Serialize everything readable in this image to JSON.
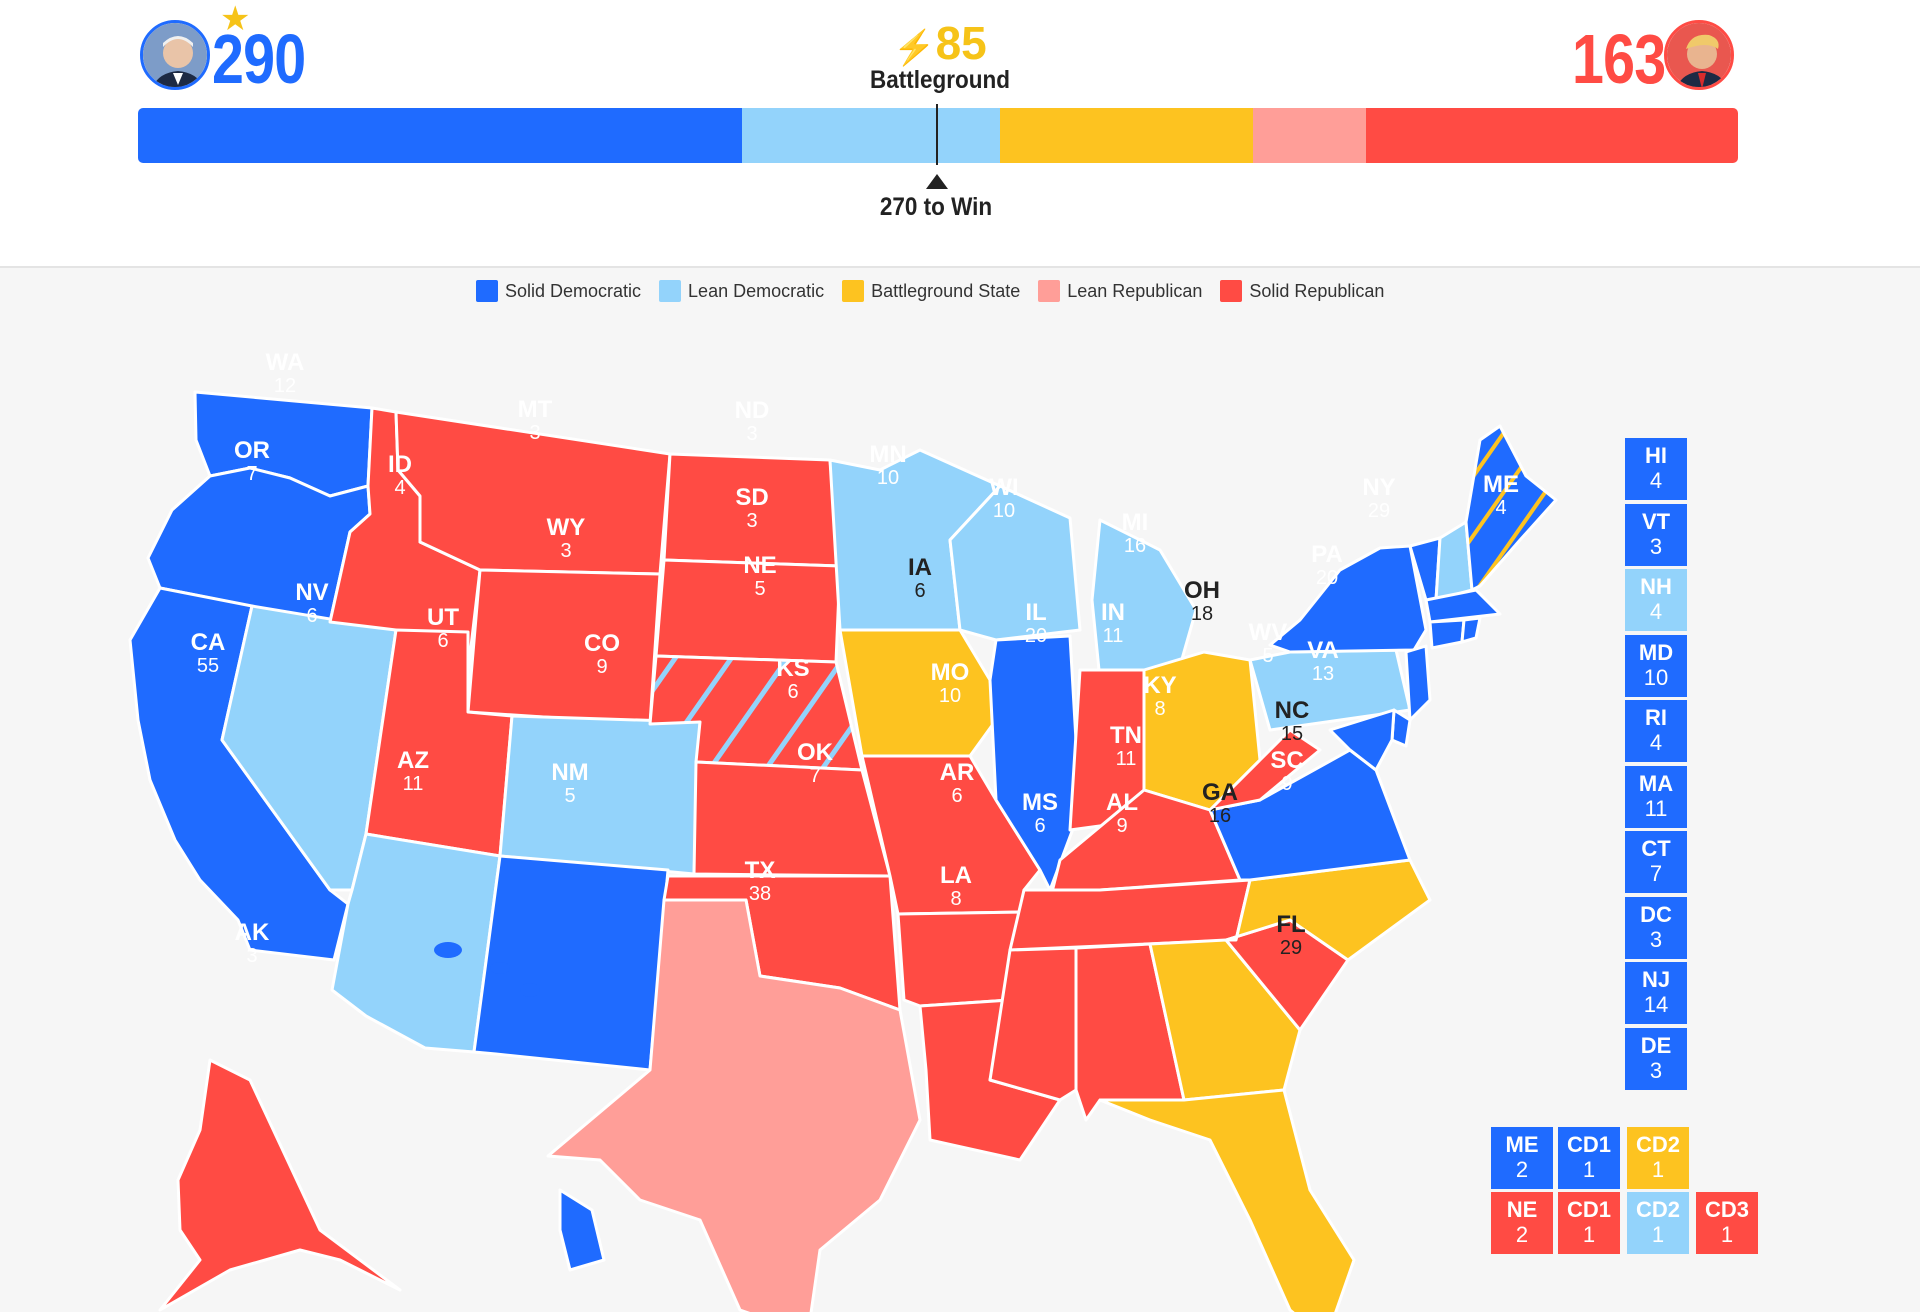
{
  "colors": {
    "solid_dem": "#1f6bff",
    "lean_dem": "#93d3fb",
    "battleground": "#fdc320",
    "lean_rep": "#ff9e98",
    "solid_rep": "#ff4b44"
  },
  "header": {
    "dem_total": "290",
    "rep_total": "163",
    "battleground_total": "85",
    "battleground_label": "Battleground",
    "win_label": "270 to Win",
    "winner_star_icon": "star-icon",
    "dem_avatar_icon": "candidate-portrait-icon",
    "rep_avatar_icon": "candidate-portrait-icon"
  },
  "bar": {
    "total": 538,
    "segments": [
      {
        "category": "solid_dem",
        "value": 203
      },
      {
        "category": "lean_dem",
        "value": 87
      },
      {
        "category": "battleground",
        "value": 85
      },
      {
        "category": "lean_rep",
        "value": 38
      },
      {
        "category": "solid_rep",
        "value": 125
      }
    ],
    "threshold": 270
  },
  "legend": [
    {
      "label": "Solid Democratic",
      "color": "#1f6bff"
    },
    {
      "label": "Lean Democratic",
      "color": "#93d3fb"
    },
    {
      "label": "Battleground State",
      "color": "#fdc320"
    },
    {
      "label": "Lean Republican",
      "color": "#ff9e98"
    },
    {
      "label": "Solid Republican",
      "color": "#ff4b44"
    }
  ],
  "states": [
    {
      "abbr": "WA",
      "ev": "12",
      "category": "solid_dem"
    },
    {
      "abbr": "OR",
      "ev": "7",
      "category": "solid_dem"
    },
    {
      "abbr": "CA",
      "ev": "55",
      "category": "solid_dem"
    },
    {
      "abbr": "NV",
      "ev": "6",
      "category": "lean_dem"
    },
    {
      "abbr": "ID",
      "ev": "4",
      "category": "solid_rep"
    },
    {
      "abbr": "MT",
      "ev": "3",
      "category": "solid_rep"
    },
    {
      "abbr": "WY",
      "ev": "3",
      "category": "solid_rep"
    },
    {
      "abbr": "UT",
      "ev": "6",
      "category": "solid_rep"
    },
    {
      "abbr": "AZ",
      "ev": "11",
      "category": "lean_dem"
    },
    {
      "abbr": "CO",
      "ev": "9",
      "category": "lean_dem"
    },
    {
      "abbr": "NM",
      "ev": "5",
      "category": "solid_dem"
    },
    {
      "abbr": "ND",
      "ev": "3",
      "category": "solid_rep"
    },
    {
      "abbr": "SD",
      "ev": "3",
      "category": "solid_rep"
    },
    {
      "abbr": "NE",
      "ev": "5",
      "category": "solid_rep"
    },
    {
      "abbr": "KS",
      "ev": "6",
      "category": "solid_rep"
    },
    {
      "abbr": "OK",
      "ev": "7",
      "category": "solid_rep"
    },
    {
      "abbr": "TX",
      "ev": "38",
      "category": "lean_rep"
    },
    {
      "abbr": "MN",
      "ev": "10",
      "category": "lean_dem"
    },
    {
      "abbr": "IA",
      "ev": "6",
      "category": "battleground"
    },
    {
      "abbr": "MO",
      "ev": "10",
      "category": "solid_rep"
    },
    {
      "abbr": "AR",
      "ev": "6",
      "category": "solid_rep"
    },
    {
      "abbr": "LA",
      "ev": "8",
      "category": "solid_rep"
    },
    {
      "abbr": "WI",
      "ev": "10",
      "category": "lean_dem"
    },
    {
      "abbr": "IL",
      "ev": "20",
      "category": "solid_dem"
    },
    {
      "abbr": "MI",
      "ev": "16",
      "category": "lean_dem"
    },
    {
      "abbr": "IN",
      "ev": "11",
      "category": "solid_rep"
    },
    {
      "abbr": "OH",
      "ev": "18",
      "category": "battleground"
    },
    {
      "abbr": "KY",
      "ev": "8",
      "category": "solid_rep"
    },
    {
      "abbr": "TN",
      "ev": "11",
      "category": "solid_rep"
    },
    {
      "abbr": "MS",
      "ev": "6",
      "category": "solid_rep"
    },
    {
      "abbr": "AL",
      "ev": "9",
      "category": "solid_rep"
    },
    {
      "abbr": "GA",
      "ev": "16",
      "category": "battleground"
    },
    {
      "abbr": "FL",
      "ev": "29",
      "category": "battleground"
    },
    {
      "abbr": "SC",
      "ev": "9",
      "category": "solid_rep"
    },
    {
      "abbr": "NC",
      "ev": "15",
      "category": "battleground"
    },
    {
      "abbr": "VA",
      "ev": "13",
      "category": "solid_dem"
    },
    {
      "abbr": "WV",
      "ev": "5",
      "category": "solid_rep"
    },
    {
      "abbr": "PA",
      "ev": "20",
      "category": "lean_dem"
    },
    {
      "abbr": "NY",
      "ev": "29",
      "category": "solid_dem"
    },
    {
      "abbr": "ME",
      "ev": "4",
      "category": "solid_dem"
    },
    {
      "abbr": "AK",
      "ev": "3",
      "category": "solid_rep"
    }
  ],
  "side_states": [
    {
      "abbr": "HI",
      "ev": "4",
      "category": "solid_dem"
    },
    {
      "abbr": "VT",
      "ev": "3",
      "category": "solid_dem"
    },
    {
      "abbr": "NH",
      "ev": "4",
      "category": "lean_dem"
    },
    {
      "abbr": "MD",
      "ev": "10",
      "category": "solid_dem"
    },
    {
      "abbr": "RI",
      "ev": "4",
      "category": "solid_dem"
    },
    {
      "abbr": "MA",
      "ev": "11",
      "category": "solid_dem"
    },
    {
      "abbr": "CT",
      "ev": "7",
      "category": "solid_dem"
    },
    {
      "abbr": "DC",
      "ev": "3",
      "category": "solid_dem"
    },
    {
      "abbr": "NJ",
      "ev": "14",
      "category": "solid_dem"
    },
    {
      "abbr": "DE",
      "ev": "3",
      "category": "solid_dem"
    }
  ],
  "districts": [
    {
      "abbr": "ME",
      "ev": "2",
      "category": "solid_dem"
    },
    {
      "abbr": "CD1",
      "ev": "1",
      "category": "solid_dem"
    },
    {
      "abbr": "CD2",
      "ev": "1",
      "category": "battleground"
    },
    {
      "abbr": "NE",
      "ev": "2",
      "category": "solid_rep"
    },
    {
      "abbr": "CD1",
      "ev": "1",
      "category": "solid_rep"
    },
    {
      "abbr": "CD2",
      "ev": "1",
      "category": "lean_dem"
    },
    {
      "abbr": "CD3",
      "ev": "1",
      "category": "solid_rep"
    }
  ]
}
